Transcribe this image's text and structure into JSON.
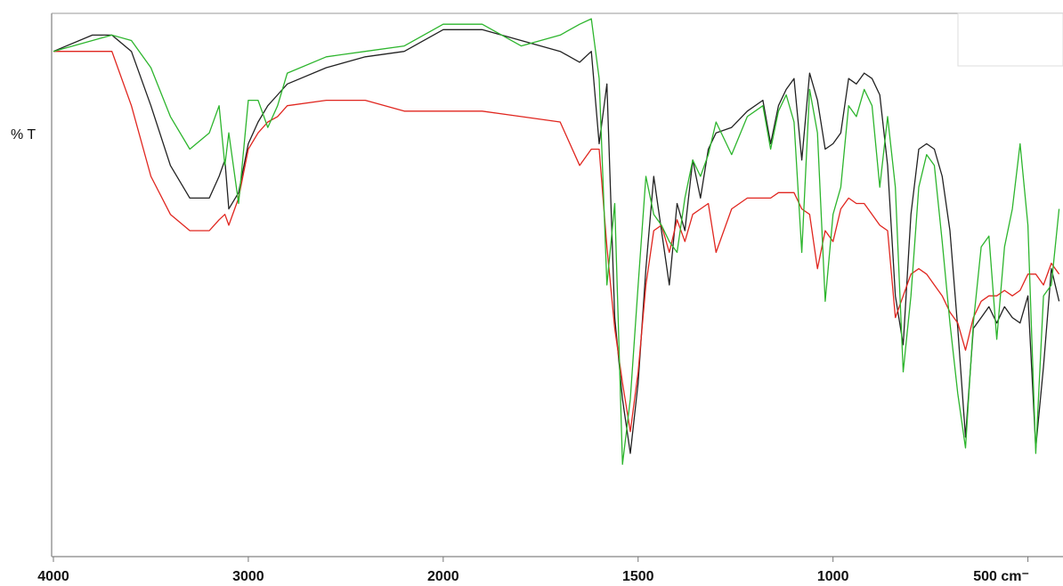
{
  "chart_data": {
    "type": "line",
    "y_label": "% T",
    "x": [
      4000,
      3800,
      3700,
      3600,
      3500,
      3400,
      3300,
      3200,
      3150,
      3120,
      3100,
      3050,
      3000,
      2950,
      2900,
      2850,
      2800,
      2600,
      2400,
      2200,
      2000,
      1900,
      1800,
      1700,
      1650,
      1620,
      1600,
      1580,
      1560,
      1540,
      1520,
      1500,
      1480,
      1460,
      1440,
      1420,
      1400,
      1380,
      1360,
      1340,
      1320,
      1300,
      1260,
      1220,
      1180,
      1160,
      1140,
      1120,
      1100,
      1080,
      1060,
      1040,
      1020,
      1000,
      980,
      960,
      940,
      920,
      900,
      880,
      860,
      840,
      820,
      800,
      780,
      760,
      740,
      720,
      700,
      680,
      660,
      640,
      620,
      600,
      580,
      560,
      540,
      520,
      500,
      480,
      460,
      440,
      420
    ],
    "series": [
      {
        "color": "#222222",
        "values": [
          93,
          96,
          96,
          93,
          83,
          72,
          66,
          66,
          70,
          73,
          64,
          67,
          76,
          80,
          83,
          85,
          87,
          90,
          92,
          93,
          97,
          97,
          95,
          93,
          91,
          93,
          76,
          87,
          44,
          29,
          19,
          32,
          53,
          70,
          60,
          50,
          65,
          60,
          73,
          66,
          75,
          78,
          79,
          82,
          84,
          76,
          83,
          86,
          88,
          73,
          89,
          84,
          75,
          76,
          78,
          88,
          87,
          89,
          88,
          85,
          72,
          48,
          39,
          63,
          75,
          76,
          75,
          70,
          60,
          42,
          22,
          42,
          44,
          46,
          43,
          46,
          44,
          43,
          48,
          20,
          35,
          53,
          47
        ]
      },
      {
        "color": "#e0261f",
        "values": [
          93,
          93,
          93,
          83,
          70,
          63,
          60,
          60,
          62,
          63,
          61,
          66,
          75,
          78,
          80,
          81,
          83,
          84,
          84,
          82,
          82,
          82,
          81,
          80,
          72,
          75,
          75,
          57,
          42,
          32,
          23,
          34,
          50,
          60,
          61,
          56,
          62,
          58,
          63,
          64,
          65,
          56,
          64,
          66,
          66,
          66,
          67,
          67,
          67,
          64,
          63,
          53,
          60,
          58,
          64,
          66,
          65,
          65,
          63,
          61,
          60,
          44,
          48,
          52,
          53,
          52,
          50,
          48,
          45,
          43,
          38,
          44,
          47,
          48,
          48,
          49,
          48,
          49,
          52,
          52,
          50,
          54,
          52
        ]
      },
      {
        "color": "#2db52d",
        "values": [
          93,
          95,
          96,
          95,
          90,
          81,
          75,
          78,
          83,
          72,
          78,
          65,
          84,
          84,
          79,
          83,
          89,
          92,
          93,
          94,
          98,
          98,
          94,
          96,
          98,
          99,
          88,
          50,
          65,
          17,
          29,
          50,
          70,
          63,
          61,
          58,
          56,
          66,
          73,
          70,
          74,
          80,
          74,
          81,
          83,
          75,
          82,
          85,
          80,
          56,
          86,
          78,
          47,
          63,
          68,
          83,
          81,
          86,
          83,
          68,
          81,
          68,
          34,
          48,
          68,
          74,
          72,
          58,
          43,
          30,
          20,
          43,
          57,
          59,
          40,
          57,
          64,
          76,
          61,
          19,
          48,
          50,
          64
        ]
      }
    ],
    "xlim": [
      4000,
      410
    ],
    "x_break": 2000,
    "xticks": [
      4000,
      3000,
      2000,
      1500,
      1000,
      {
        "value": 500,
        "label": "500 cm⁻"
      }
    ],
    "ylim": [
      0,
      100
    ]
  }
}
